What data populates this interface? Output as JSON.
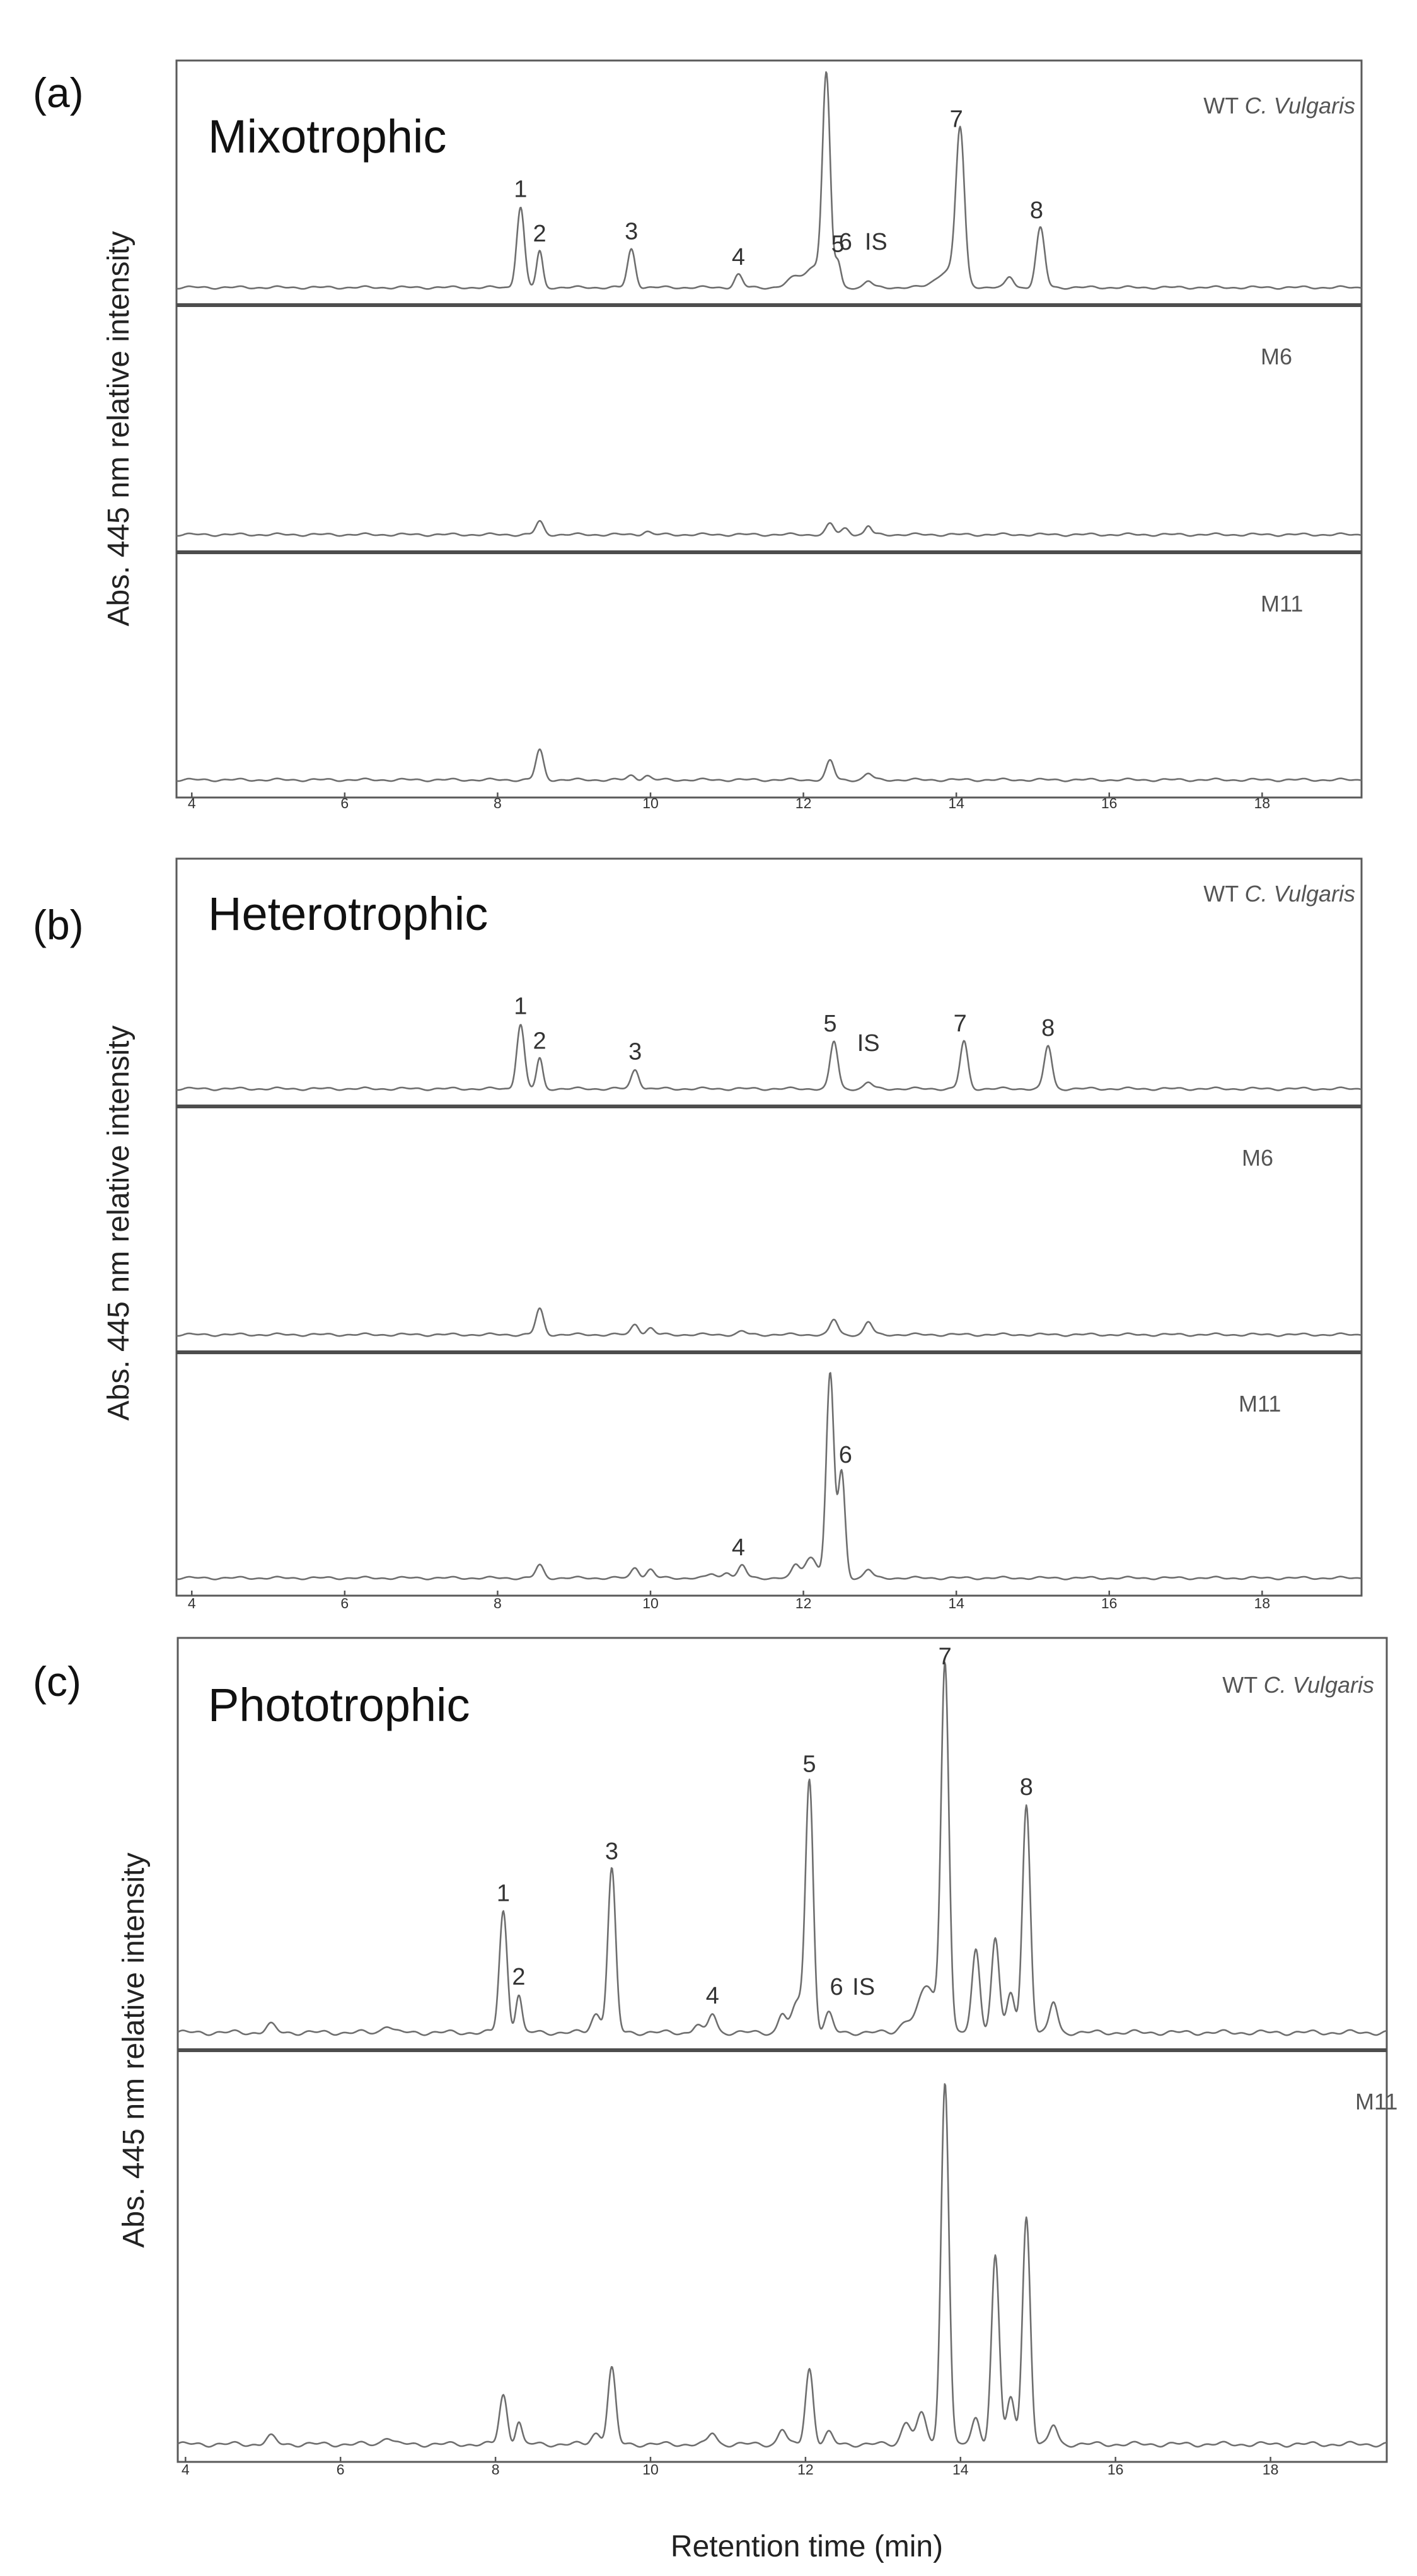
{
  "chart_data": [
    {
      "type": "line",
      "panel_label": "(a)",
      "title": "Mixotrophic",
      "ylabel": "Abs. 445 nm relative intensity",
      "xlim": [
        3.8,
        19.3
      ],
      "x_ticks": [
        4,
        6,
        8,
        10,
        12,
        14,
        16,
        18
      ],
      "x_tick_labels": [
        "4",
        "6",
        "8",
        "10",
        "12",
        "14",
        "16",
        "18"
      ],
      "series": [
        {
          "name": "WT C. Vulgaris",
          "name_parts": [
            "WT ",
            "C. Vulgaris"
          ],
          "peaks": [
            {
              "rt": 8.3,
              "h": 0.38,
              "w": 0.05
            },
            {
              "rt": 8.55,
              "h": 0.17,
              "w": 0.04
            },
            {
              "rt": 9.75,
              "h": 0.18,
              "w": 0.05
            },
            {
              "rt": 11.15,
              "h": 0.06,
              "w": 0.05
            },
            {
              "rt": 11.9,
              "h": 0.05,
              "w": 0.1
            },
            {
              "rt": 12.15,
              "h": 0.1,
              "w": 0.1
            },
            {
              "rt": 12.3,
              "h": 0.98,
              "w": 0.05
            },
            {
              "rt": 12.45,
              "h": 0.12,
              "w": 0.04
            },
            {
              "rt": 12.85,
              "h": 0.03,
              "w": 0.05
            },
            {
              "rt": 13.9,
              "h": 0.08,
              "w": 0.15
            },
            {
              "rt": 14.05,
              "h": 0.71,
              "w": 0.055
            },
            {
              "rt": 14.7,
              "h": 0.05,
              "w": 0.05
            },
            {
              "rt": 15.1,
              "h": 0.28,
              "w": 0.055
            }
          ]
        },
        {
          "name": "M6",
          "peaks": [
            {
              "rt": 8.55,
              "h": 0.06,
              "w": 0.05
            },
            {
              "rt": 9.95,
              "h": 0.015,
              "w": 0.05
            },
            {
              "rt": 12.35,
              "h": 0.05,
              "w": 0.05
            },
            {
              "rt": 12.55,
              "h": 0.03,
              "w": 0.05
            },
            {
              "rt": 12.85,
              "h": 0.04,
              "w": 0.04
            }
          ]
        },
        {
          "name": "M11",
          "peaks": [
            {
              "rt": 8.55,
              "h": 0.14,
              "w": 0.05
            },
            {
              "rt": 9.75,
              "h": 0.02,
              "w": 0.05
            },
            {
              "rt": 9.95,
              "h": 0.02,
              "w": 0.05
            },
            {
              "rt": 12.35,
              "h": 0.09,
              "w": 0.05
            },
            {
              "rt": 12.85,
              "h": 0.03,
              "w": 0.05
            }
          ]
        }
      ],
      "peak_labels": [
        {
          "text": "1",
          "rt": 8.3,
          "track": 0
        },
        {
          "text": "2",
          "rt": 8.55,
          "track": 0
        },
        {
          "text": "3",
          "rt": 9.75,
          "track": 0
        },
        {
          "text": "4",
          "rt": 11.15,
          "track": 0
        },
        {
          "text": "5",
          "rt": 12.45,
          "track": 0
        },
        {
          "text": "6",
          "rt": 12.55,
          "track": 0
        },
        {
          "text": "IS",
          "rt": 12.95,
          "track": 0
        },
        {
          "text": "7",
          "rt": 14.0,
          "track": 0
        },
        {
          "text": "8",
          "rt": 15.05,
          "track": 0
        }
      ]
    },
    {
      "type": "line",
      "panel_label": "(b)",
      "title": "Heterotrophic",
      "ylabel": "Abs. 445 nm relative intensity",
      "xlim": [
        3.8,
        19.3
      ],
      "x_ticks": [
        4,
        6,
        8,
        10,
        12,
        14,
        16,
        18
      ],
      "x_tick_labels": [
        "4",
        "6",
        "8",
        "10",
        "12",
        "14",
        "16",
        "18"
      ],
      "series": [
        {
          "name": "WT C. Vulgaris",
          "name_parts": [
            "WT ",
            "C. Vulgaris"
          ],
          "peaks": [
            {
              "rt": 8.3,
              "h": 0.3,
              "w": 0.05
            },
            {
              "rt": 8.55,
              "h": 0.14,
              "w": 0.04
            },
            {
              "rt": 9.8,
              "h": 0.09,
              "w": 0.05
            },
            {
              "rt": 12.4,
              "h": 0.22,
              "w": 0.05
            },
            {
              "rt": 12.85,
              "h": 0.03,
              "w": 0.05
            },
            {
              "rt": 14.1,
              "h": 0.22,
              "w": 0.05
            },
            {
              "rt": 15.2,
              "h": 0.2,
              "w": 0.05
            }
          ]
        },
        {
          "name": "M6",
          "peaks": [
            {
              "rt": 8.55,
              "h": 0.12,
              "w": 0.05
            },
            {
              "rt": 9.8,
              "h": 0.05,
              "w": 0.05
            },
            {
              "rt": 10.0,
              "h": 0.03,
              "w": 0.05
            },
            {
              "rt": 11.2,
              "h": 0.015,
              "w": 0.05
            },
            {
              "rt": 12.4,
              "h": 0.07,
              "w": 0.05
            },
            {
              "rt": 12.85,
              "h": 0.06,
              "w": 0.05
            }
          ]
        },
        {
          "name": "M11",
          "peaks": [
            {
              "rt": 8.55,
              "h": 0.06,
              "w": 0.05
            },
            {
              "rt": 9.8,
              "h": 0.05,
              "w": 0.05
            },
            {
              "rt": 10.0,
              "h": 0.04,
              "w": 0.05
            },
            {
              "rt": 10.8,
              "h": 0.02,
              "w": 0.05
            },
            {
              "rt": 11.0,
              "h": 0.03,
              "w": 0.05
            },
            {
              "rt": 11.2,
              "h": 0.06,
              "w": 0.05
            },
            {
              "rt": 11.9,
              "h": 0.06,
              "w": 0.05
            },
            {
              "rt": 12.1,
              "h": 0.1,
              "w": 0.08
            },
            {
              "rt": 12.35,
              "h": 0.97,
              "w": 0.05
            },
            {
              "rt": 12.5,
              "h": 0.5,
              "w": 0.045
            },
            {
              "rt": 12.85,
              "h": 0.04,
              "w": 0.05
            }
          ]
        }
      ],
      "peak_labels": [
        {
          "text": "1",
          "rt": 8.3,
          "track": 0
        },
        {
          "text": "2",
          "rt": 8.55,
          "track": 0
        },
        {
          "text": "3",
          "rt": 9.8,
          "track": 0
        },
        {
          "text": "5",
          "rt": 12.35,
          "track": 0
        },
        {
          "text": "IS",
          "rt": 12.85,
          "track": 0
        },
        {
          "text": "7",
          "rt": 14.05,
          "track": 0
        },
        {
          "text": "8",
          "rt": 15.2,
          "track": 0
        },
        {
          "text": "4",
          "rt": 11.15,
          "track": 2
        },
        {
          "text": "6",
          "rt": 12.55,
          "track": 2
        }
      ]
    },
    {
      "type": "line",
      "panel_label": "(c)",
      "title": "Phototrophic",
      "ylabel": "Abs. 445 nm relative intensity",
      "xlabel": "Retention time (min)",
      "xlim": [
        3.9,
        19.5
      ],
      "x_ticks": [
        4,
        6,
        8,
        10,
        12,
        14,
        16,
        18
      ],
      "x_tick_labels": [
        "4",
        "6",
        "8",
        "10",
        "12",
        "14",
        "16",
        "18"
      ],
      "series": [
        {
          "name": "WT C. Vulgaris",
          "name_parts": [
            "WT ",
            "C. Vulgaris"
          ],
          "peaks": [
            {
              "rt": 5.1,
              "h": 0.02,
              "w": 0.06
            },
            {
              "rt": 6.6,
              "h": 0.02,
              "w": 0.06
            },
            {
              "rt": 8.1,
              "h": 0.32,
              "w": 0.05
            },
            {
              "rt": 8.3,
              "h": 0.1,
              "w": 0.04
            },
            {
              "rt": 9.3,
              "h": 0.05,
              "w": 0.06
            },
            {
              "rt": 9.5,
              "h": 0.43,
              "w": 0.05
            },
            {
              "rt": 10.6,
              "h": 0.02,
              "w": 0.05
            },
            {
              "rt": 10.8,
              "h": 0.05,
              "w": 0.05
            },
            {
              "rt": 11.7,
              "h": 0.05,
              "w": 0.05
            },
            {
              "rt": 11.9,
              "h": 0.08,
              "w": 0.07
            },
            {
              "rt": 12.05,
              "h": 0.66,
              "w": 0.05
            },
            {
              "rt": 12.3,
              "h": 0.05,
              "w": 0.05
            },
            {
              "rt": 13.3,
              "h": 0.03,
              "w": 0.08
            },
            {
              "rt": 13.5,
              "h": 0.04,
              "w": 0.08
            },
            {
              "rt": 13.6,
              "h": 0.1,
              "w": 0.1
            },
            {
              "rt": 13.8,
              "h": 0.97,
              "w": 0.05
            },
            {
              "rt": 14.2,
              "h": 0.22,
              "w": 0.05
            },
            {
              "rt": 14.45,
              "h": 0.25,
              "w": 0.05
            },
            {
              "rt": 14.65,
              "h": 0.1,
              "w": 0.05
            },
            {
              "rt": 14.85,
              "h": 0.6,
              "w": 0.05
            },
            {
              "rt": 15.2,
              "h": 0.08,
              "w": 0.05
            }
          ]
        },
        {
          "name": "M11",
          "peaks": [
            {
              "rt": 5.1,
              "h": 0.02,
              "w": 0.06
            },
            {
              "rt": 6.6,
              "h": 0.02,
              "w": 0.06
            },
            {
              "rt": 8.1,
              "h": 0.13,
              "w": 0.05
            },
            {
              "rt": 8.3,
              "h": 0.06,
              "w": 0.04
            },
            {
              "rt": 9.3,
              "h": 0.03,
              "w": 0.06
            },
            {
              "rt": 9.5,
              "h": 0.2,
              "w": 0.05
            },
            {
              "rt": 10.8,
              "h": 0.03,
              "w": 0.05
            },
            {
              "rt": 11.7,
              "h": 0.04,
              "w": 0.05
            },
            {
              "rt": 12.05,
              "h": 0.2,
              "w": 0.05
            },
            {
              "rt": 12.3,
              "h": 0.03,
              "w": 0.05
            },
            {
              "rt": 13.3,
              "h": 0.06,
              "w": 0.06
            },
            {
              "rt": 13.5,
              "h": 0.08,
              "w": 0.06
            },
            {
              "rt": 13.8,
              "h": 0.96,
              "w": 0.05
            },
            {
              "rt": 14.2,
              "h": 0.07,
              "w": 0.05
            },
            {
              "rt": 14.45,
              "h": 0.5,
              "w": 0.05
            },
            {
              "rt": 14.65,
              "h": 0.12,
              "w": 0.05
            },
            {
              "rt": 14.85,
              "h": 0.6,
              "w": 0.05
            },
            {
              "rt": 15.2,
              "h": 0.05,
              "w": 0.05
            }
          ]
        }
      ],
      "peak_labels": [
        {
          "text": "1",
          "rt": 8.1,
          "track": 0
        },
        {
          "text": "2",
          "rt": 8.3,
          "track": 0
        },
        {
          "text": "3",
          "rt": 9.5,
          "track": 0
        },
        {
          "text": "4",
          "rt": 10.8,
          "track": 0
        },
        {
          "text": "5",
          "rt": 12.05,
          "track": 0
        },
        {
          "text": "6",
          "rt": 12.4,
          "track": 0
        },
        {
          "text": "IS",
          "rt": 12.75,
          "track": 0
        },
        {
          "text": "7",
          "rt": 13.8,
          "track": 0
        },
        {
          "text": "8",
          "rt": 14.85,
          "track": 0
        }
      ]
    }
  ]
}
